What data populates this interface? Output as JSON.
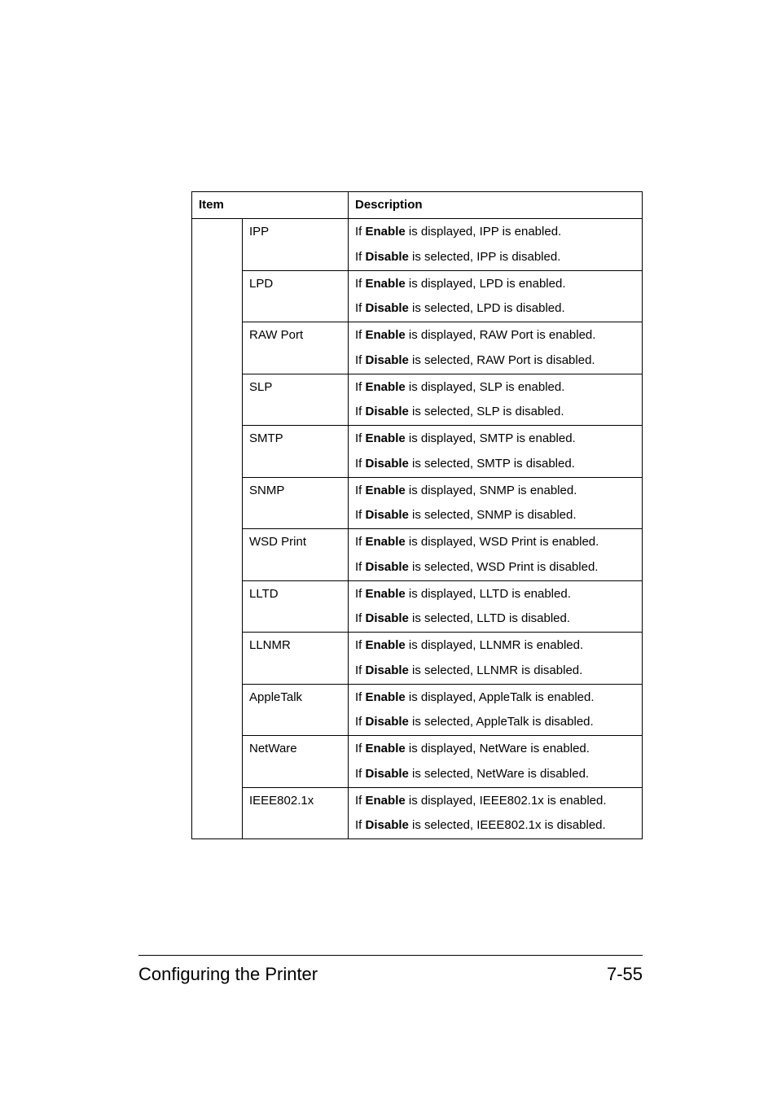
{
  "table": {
    "header": {
      "item": "Item",
      "desc": "Description"
    },
    "rows": [
      {
        "item": "IPP",
        "desc": [
          {
            "pre": "If ",
            "bold": "Enable",
            "post": " is displayed, IPP is enabled."
          },
          {
            "pre": "If ",
            "bold": "Disable",
            "post": " is selected, IPP is disabled."
          }
        ]
      },
      {
        "item": "LPD",
        "desc": [
          {
            "pre": "If ",
            "bold": "Enable",
            "post": " is displayed, LPD is enabled."
          },
          {
            "pre": "If ",
            "bold": "Disable",
            "post": " is selected, LPD is disabled."
          }
        ]
      },
      {
        "item": "RAW Port",
        "desc": [
          {
            "pre": "If ",
            "bold": "Enable",
            "post": " is displayed, RAW Port is enabled."
          },
          {
            "pre": "If ",
            "bold": "Disable",
            "post": " is selected, RAW Port is disabled."
          }
        ]
      },
      {
        "item": "SLP",
        "desc": [
          {
            "pre": "If ",
            "bold": "Enable",
            "post": " is displayed, SLP is enabled."
          },
          {
            "pre": "If ",
            "bold": "Disable",
            "post": " is selected, SLP is disabled."
          }
        ]
      },
      {
        "item": "SMTP",
        "desc": [
          {
            "pre": "If ",
            "bold": "Enable",
            "post": " is displayed, SMTP is enabled."
          },
          {
            "pre": "If ",
            "bold": "Disable",
            "post": " is selected, SMTP is disabled."
          }
        ]
      },
      {
        "item": "SNMP",
        "desc": [
          {
            "pre": "If ",
            "bold": "Enable",
            "post": " is displayed, SNMP is enabled."
          },
          {
            "pre": "If ",
            "bold": "Disable",
            "post": " is selected, SNMP is disabled."
          }
        ]
      },
      {
        "item": "WSD Print",
        "desc": [
          {
            "pre": "If ",
            "bold": "Enable",
            "post": " is displayed, WSD Print is enabled."
          },
          {
            "pre": "If ",
            "bold": "Disable",
            "post": " is selected, WSD Print is disabled."
          }
        ]
      },
      {
        "item": "LLTD",
        "desc": [
          {
            "pre": "If ",
            "bold": "Enable",
            "post": " is displayed, LLTD is enabled."
          },
          {
            "pre": "If ",
            "bold": "Disable",
            "post": " is selected, LLTD is disabled."
          }
        ]
      },
      {
        "item": "LLNMR",
        "desc": [
          {
            "pre": "If ",
            "bold": "Enable",
            "post": " is displayed, LLNMR is enabled."
          },
          {
            "pre": "If ",
            "bold": "Disable",
            "post": " is selected, LLNMR is disabled."
          }
        ]
      },
      {
        "item": "AppleTalk",
        "desc": [
          {
            "pre": "If ",
            "bold": "Enable",
            "post": " is displayed, AppleTalk is enabled."
          },
          {
            "pre": "If ",
            "bold": "Disable",
            "post": " is selected, AppleTalk is disabled."
          }
        ]
      },
      {
        "item": "NetWare",
        "desc": [
          {
            "pre": "If ",
            "bold": "Enable",
            "post": " is displayed, NetWare is enabled."
          },
          {
            "pre": "If ",
            "bold": "Disable",
            "post": " is selected, NetWare is disabled."
          }
        ]
      },
      {
        "item": "IEEE802.1x",
        "desc": [
          {
            "pre": "If ",
            "bold": "Enable",
            "post": " is displayed, IEEE802.1x is enabled."
          },
          {
            "pre": "If ",
            "bold": "Disable",
            "post": " is selected, IEEE802.1x is disabled."
          }
        ]
      }
    ]
  },
  "footer": {
    "left": "Configuring the Printer",
    "right": "7-55"
  }
}
